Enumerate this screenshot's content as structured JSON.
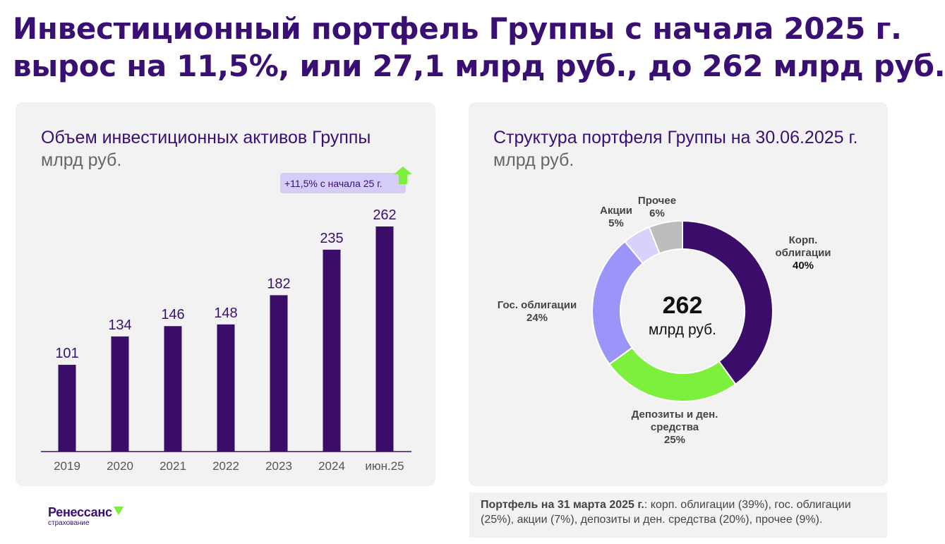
{
  "headline": {
    "line1": "Инвестиционный портфель Группы с начала 2025 г.",
    "line2": "вырос на 11,5%, или 27,1 млрд руб., до 262 млрд руб."
  },
  "colors": {
    "brand_purple": "#3a0f73",
    "bar": "#3a0d6a",
    "badge_bg": "#d5ccf7",
    "accent_green": "#7cf03c"
  },
  "chart_data": [
    {
      "type": "bar",
      "title": "Объем инвестиционных активов Группы",
      "subtitle": "млрд руб.",
      "categories": [
        "2019",
        "2020",
        "2021",
        "2022",
        "2023",
        "2024",
        "июн.25"
      ],
      "values": [
        101,
        134,
        146,
        148,
        182,
        235,
        262
      ],
      "ylim": [
        0,
        262
      ],
      "grid": false,
      "annotation": "+11,5% с начала 25 г."
    },
    {
      "type": "pie",
      "title": "Структура портфеля Группы на 30.06.2025 г.",
      "subtitle": "млрд руб.",
      "center_value": "262",
      "center_unit": "млрд руб.",
      "slices": [
        {
          "name": "Корп. облигации",
          "lines": [
            "Корп.",
            "облигации"
          ],
          "pct_label": "40%",
          "value": 40,
          "color": "#3a0d6a"
        },
        {
          "name": "Депозиты и ден. средства",
          "lines": [
            "Депозиты и ден.",
            "средства"
          ],
          "pct_label": "25%",
          "value": 25,
          "color": "#7cf03c"
        },
        {
          "name": "Гос. облигации",
          "lines": [
            "Гос. облигации"
          ],
          "pct_label": "24%",
          "value": 24,
          "color": "#9c95f9"
        },
        {
          "name": "Акции",
          "lines": [
            "Акции"
          ],
          "pct_label": "5%",
          "value": 5,
          "color": "#d8d1fb"
        },
        {
          "name": "Прочее",
          "lines": [
            "Прочее"
          ],
          "pct_label": "6%",
          "value": 6,
          "color": "#bcbcbc"
        }
      ]
    }
  ],
  "note": {
    "bold": "Портфель на 31 марта 2025 г.",
    "text": ": корп. облигации (39%), гос. облигации (25%), акции (7%), депозиты и ден. средства (20%), прочее (9%)."
  },
  "logo": {
    "name": "Ренессанс",
    "sub": "страхование"
  }
}
